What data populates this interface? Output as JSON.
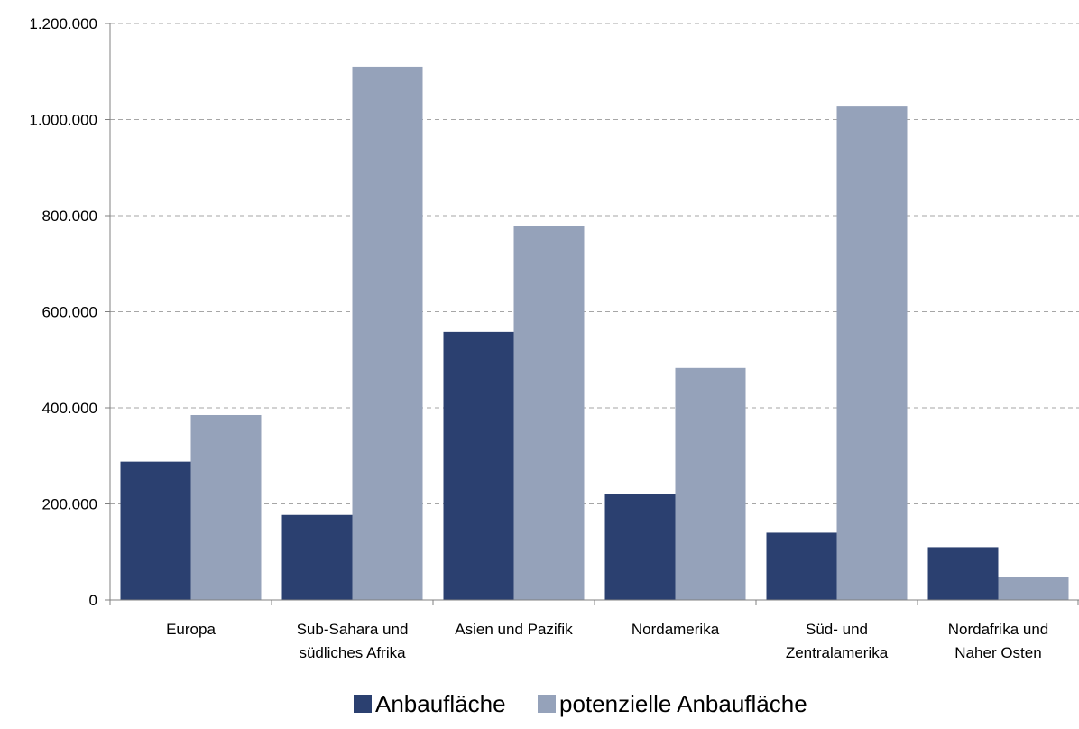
{
  "chart_data": {
    "type": "bar",
    "categories": [
      [
        "Europa"
      ],
      [
        "Sub-Sahara und",
        "südliches Afrika"
      ],
      [
        "Asien und Pazifik"
      ],
      [
        "Nordamerika"
      ],
      [
        "Süd- und",
        "Zentralamerika"
      ],
      [
        "Nordafrika und",
        "Naher Osten"
      ]
    ],
    "series": [
      {
        "name": "Anbaufläche",
        "color": "#2b4070",
        "values": [
          288000,
          177000,
          558000,
          220000,
          140000,
          110000
        ]
      },
      {
        "name": "potenzielle Anbaufläche",
        "color": "#95a2ba",
        "values": [
          385000,
          1110000,
          778000,
          483000,
          1027000,
          48000
        ]
      }
    ],
    "ylim": [
      0,
      1200000
    ],
    "yticks": [
      0,
      200000,
      400000,
      600000,
      800000,
      1000000,
      1200000
    ],
    "ytick_labels": [
      "0",
      "200.000",
      "400.000",
      "600.000",
      "800.000",
      "1.000.000",
      "1.200.000"
    ],
    "grid": true,
    "legend_position": "bottom"
  }
}
